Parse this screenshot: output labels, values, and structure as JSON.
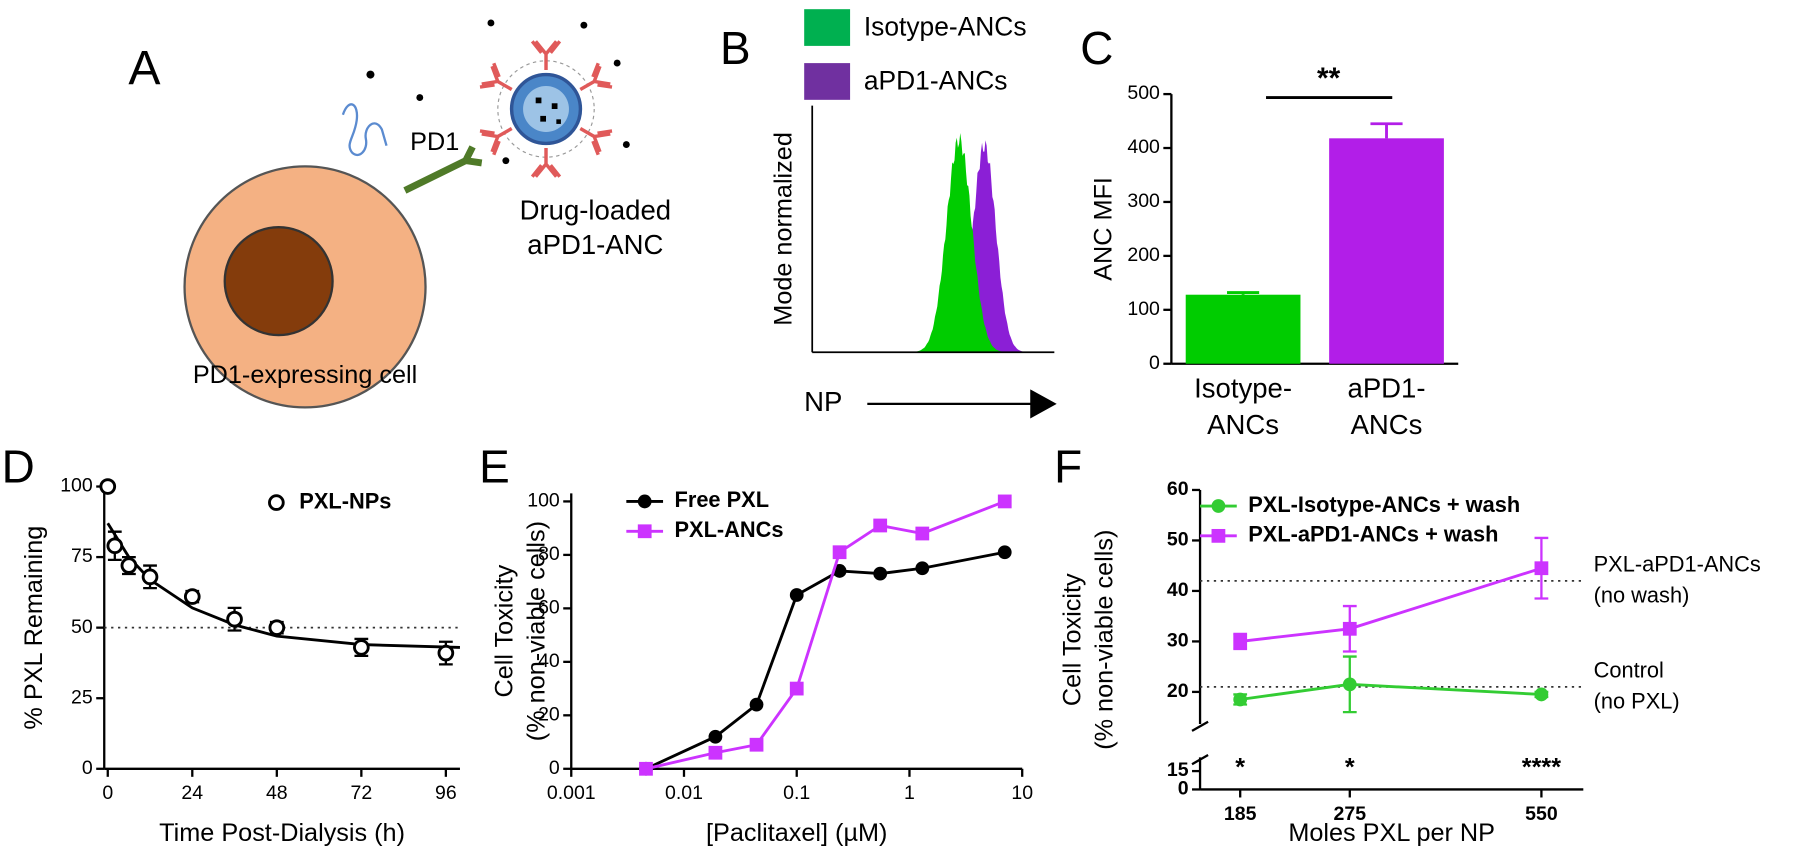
{
  "diagram": {
    "label": "A",
    "receptor": "PD1",
    "particle": [
      "Drug-loaded",
      "aPD1-ANC"
    ],
    "cell": "PD1-expressing cell"
  },
  "chart_data": [
    {
      "type": "flow_histogram",
      "panel": "B",
      "xlabel": "NP",
      "ylabel": "Mode normalized",
      "series": [
        {
          "name": "Isotype-ANCs",
          "color": "#00b050"
        },
        {
          "name": "aPD1-ANCs",
          "color": "#7030a0"
        }
      ]
    },
    {
      "type": "bar",
      "panel": "C",
      "ylabel": "ANC MFI",
      "categories": [
        [
          "Isotype-",
          "ANCs"
        ],
        [
          "aPD1-",
          "ANCs"
        ]
      ],
      "values": [
        128,
        418
      ],
      "errors": [
        4,
        27
      ],
      "colors": [
        "#00cc00",
        "#b21ee8"
      ],
      "ylim": [
        0,
        500
      ],
      "yticks": [
        0,
        100,
        200,
        300,
        400,
        500
      ],
      "significance": "**"
    },
    {
      "type": "scatter",
      "panel": "D",
      "xlabel": "Time Post-Dialysis (h)",
      "ylabel": "% PXL Remaining",
      "x": [
        0,
        2,
        6,
        12,
        24,
        36,
        48,
        72,
        96
      ],
      "series": [
        {
          "name": "PXL-NPs",
          "color": "#000000",
          "marker": "open-circle",
          "values": [
            100,
            79,
            72,
            68,
            61,
            53,
            50,
            43,
            41
          ],
          "errors": [
            0,
            5,
            3,
            4,
            2,
            4,
            2,
            3,
            4
          ]
        }
      ],
      "fit": {
        "x": [
          0,
          6,
          12,
          24,
          36,
          48,
          72,
          100
        ],
        "values": [
          87,
          75,
          67,
          57,
          51,
          47,
          44,
          43
        ]
      },
      "hline": 50,
      "xlim": [
        -1,
        100
      ],
      "ylim": [
        0,
        100
      ],
      "xticks": [
        0,
        24,
        48,
        72,
        96
      ],
      "yticks": [
        0,
        25,
        50,
        75,
        100
      ]
    },
    {
      "type": "line",
      "panel": "E",
      "xlabel": "[Paclitaxel] (µM)",
      "ylabel": [
        "Cell Toxicity",
        "(% non-viable cells)"
      ],
      "xscale": "log",
      "x": [
        0.0046,
        0.019,
        0.044,
        0.1,
        0.24,
        0.55,
        1.3,
        7
      ],
      "series": [
        {
          "name": "Free PXL",
          "color": "#000000",
          "marker": "circle",
          "values": [
            0,
            12,
            24,
            65,
            74,
            73,
            75,
            81
          ]
        },
        {
          "name": "PXL-ANCs",
          "color": "#cc33ff",
          "marker": "square",
          "values": [
            0,
            6,
            9,
            30,
            81,
            91,
            88,
            100
          ]
        }
      ],
      "xlim": [
        0.001,
        10
      ],
      "ylim": [
        0,
        103
      ],
      "xticks": [
        0.001,
        0.01,
        0.1,
        1,
        10
      ],
      "yticks": [
        0,
        20,
        40,
        60,
        80,
        100
      ]
    },
    {
      "type": "line",
      "panel": "F",
      "xlabel": "Moles PXL per NP",
      "ylabel": [
        "Cell Toxicity",
        "(% non-viable cells)"
      ],
      "xscale": "log",
      "x": [
        185,
        275,
        550
      ],
      "series": [
        {
          "name": "PXL-Isotype-ANCs + wash",
          "color": "#33cc33",
          "marker": "circle",
          "values": [
            18.5,
            21.5,
            19.5
          ],
          "errors": [
            1,
            5.5,
            0.5
          ]
        },
        {
          "name": "PXL-aPD1-ANCs + wash",
          "color": "#cc33ff",
          "marker": "square",
          "values": [
            30,
            32.5,
            44.5
          ],
          "errors": [
            1.5,
            4.5,
            6
          ]
        }
      ],
      "reference_lines": [
        {
          "value": 42,
          "label": [
            "PXL-aPD1-ANCs",
            "(no wash)"
          ]
        },
        {
          "value": 21,
          "label": [
            "Control",
            "(no PXL)"
          ]
        }
      ],
      "significance": [
        "*",
        "*",
        "****"
      ],
      "xlim": [
        160,
        640
      ],
      "ylim": [
        0,
        60
      ],
      "ybreak": 15,
      "xticks": [
        185,
        275,
        550
      ],
      "yticks": [
        0,
        15,
        20,
        30,
        40,
        50,
        60
      ]
    }
  ]
}
